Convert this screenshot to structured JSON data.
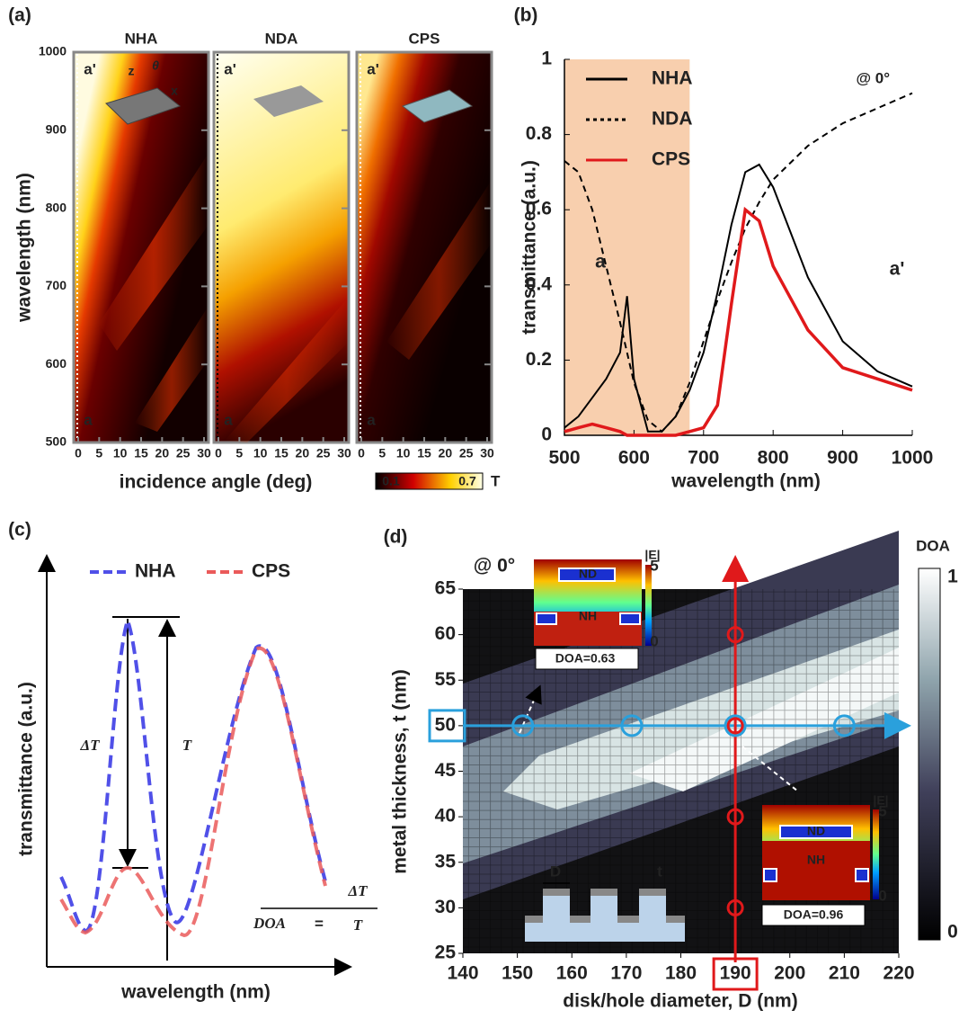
{
  "chart_data": [
    {
      "type": "heatmap",
      "label": "(a)",
      "titles": [
        "NHA",
        "NDA",
        "CPS"
      ],
      "x_label": "incidence angle (deg)",
      "y_label": "wavelength (nm)",
      "xlim": [
        0,
        30
      ],
      "xticks": [
        0,
        5,
        10,
        15,
        20,
        25,
        30
      ],
      "ylim": [
        500,
        1000
      ],
      "yticks": [
        500,
        600,
        700,
        800,
        900,
        1000
      ],
      "annotations": [
        "a'",
        "a"
      ],
      "inset_axes": [
        "z",
        "x",
        "θ"
      ],
      "colorbar": {
        "ticks": [
          0.1,
          0.7
        ],
        "label": "T"
      }
    },
    {
      "type": "line",
      "label": "(b)",
      "x_label": "wavelength (nm)",
      "y_label": "transmittance (a.u.)",
      "x": [
        500,
        520,
        540,
        560,
        580,
        590,
        600,
        620,
        640,
        660,
        680,
        700,
        720,
        740,
        760,
        780,
        800,
        850,
        900,
        950,
        1000
      ],
      "series": [
        {
          "name": "NHA",
          "color": "#000000",
          "dash": "solid",
          "values": [
            0.02,
            0.05,
            0.1,
            0.15,
            0.22,
            0.37,
            0.15,
            0.01,
            0.01,
            0.05,
            0.12,
            0.22,
            0.38,
            0.56,
            0.7,
            0.72,
            0.66,
            0.42,
            0.25,
            0.17,
            0.13
          ]
        },
        {
          "name": "NDA",
          "color": "#000000",
          "dash": "dashed",
          "values": [
            0.73,
            0.7,
            0.6,
            0.45,
            0.3,
            0.22,
            0.14,
            0.04,
            0.01,
            0.05,
            0.14,
            0.25,
            0.36,
            0.46,
            0.55,
            0.62,
            0.68,
            0.77,
            0.83,
            0.87,
            0.91
          ]
        },
        {
          "name": "CPS",
          "color": "#e0191b",
          "dash": "solid",
          "values": [
            0.01,
            0.02,
            0.03,
            0.02,
            0.01,
            0.0,
            0.0,
            0.0,
            0.0,
            0.0,
            0.01,
            0.02,
            0.08,
            0.35,
            0.6,
            0.57,
            0.45,
            0.28,
            0.18,
            0.15,
            0.12
          ]
        }
      ],
      "xlim": [
        500,
        1000
      ],
      "xticks": [
        500,
        600,
        700,
        800,
        900,
        1000
      ],
      "ylim": [
        0,
        1
      ],
      "yticks": [
        0,
        0.2,
        0.4,
        0.6,
        0.8,
        1
      ],
      "shaded_region": [
        500,
        680
      ],
      "shade_color": "#f8cfae",
      "annotations": [
        "a",
        "a'",
        "@ 0°"
      ]
    },
    {
      "type": "schematic",
      "label": "(c)",
      "x_label": "wavelength (nm)",
      "y_label": "transmittance (a.u.)",
      "series": [
        {
          "name": "NHA",
          "color": "#5050e8"
        },
        {
          "name": "CPS",
          "color": "#ea5a5a"
        }
      ],
      "annotations": [
        "ΔT",
        "T"
      ],
      "formula": {
        "lhs": "DOA",
        "equals": "=",
        "numerator": "ΔT",
        "denominator": "T"
      }
    },
    {
      "type": "heatmap",
      "label": "(d)",
      "x_label": "disk/hole diameter, D (nm)",
      "y_label": "metal thickness, t (nm)",
      "xlim": [
        140,
        220
      ],
      "xticks": [
        140,
        150,
        160,
        170,
        180,
        190,
        200,
        210,
        220
      ],
      "ylim": [
        25,
        65
      ],
      "yticks": [
        25,
        30,
        35,
        40,
        45,
        50,
        55,
        60,
        65
      ],
      "colorbar": {
        "label": "DOA",
        "ticks": [
          0,
          1
        ]
      },
      "annotations": [
        "@ 0°"
      ],
      "selected_x": 190,
      "selected_y": 50,
      "points_x": [
        151,
        171,
        190,
        210
      ],
      "points_y": [
        60,
        50,
        40,
        30
      ],
      "insets": [
        {
          "label": "DOA=0.63",
          "disk": "ND",
          "hole": "NH",
          "field": "|E|",
          "scale": [
            0,
            5
          ]
        },
        {
          "label": "DOA=0.96",
          "disk": "ND",
          "hole": "NH",
          "field": "|E|",
          "scale": [
            0,
            5
          ]
        }
      ],
      "schematic": {
        "width_label": "D",
        "thickness_label": "t"
      }
    }
  ]
}
